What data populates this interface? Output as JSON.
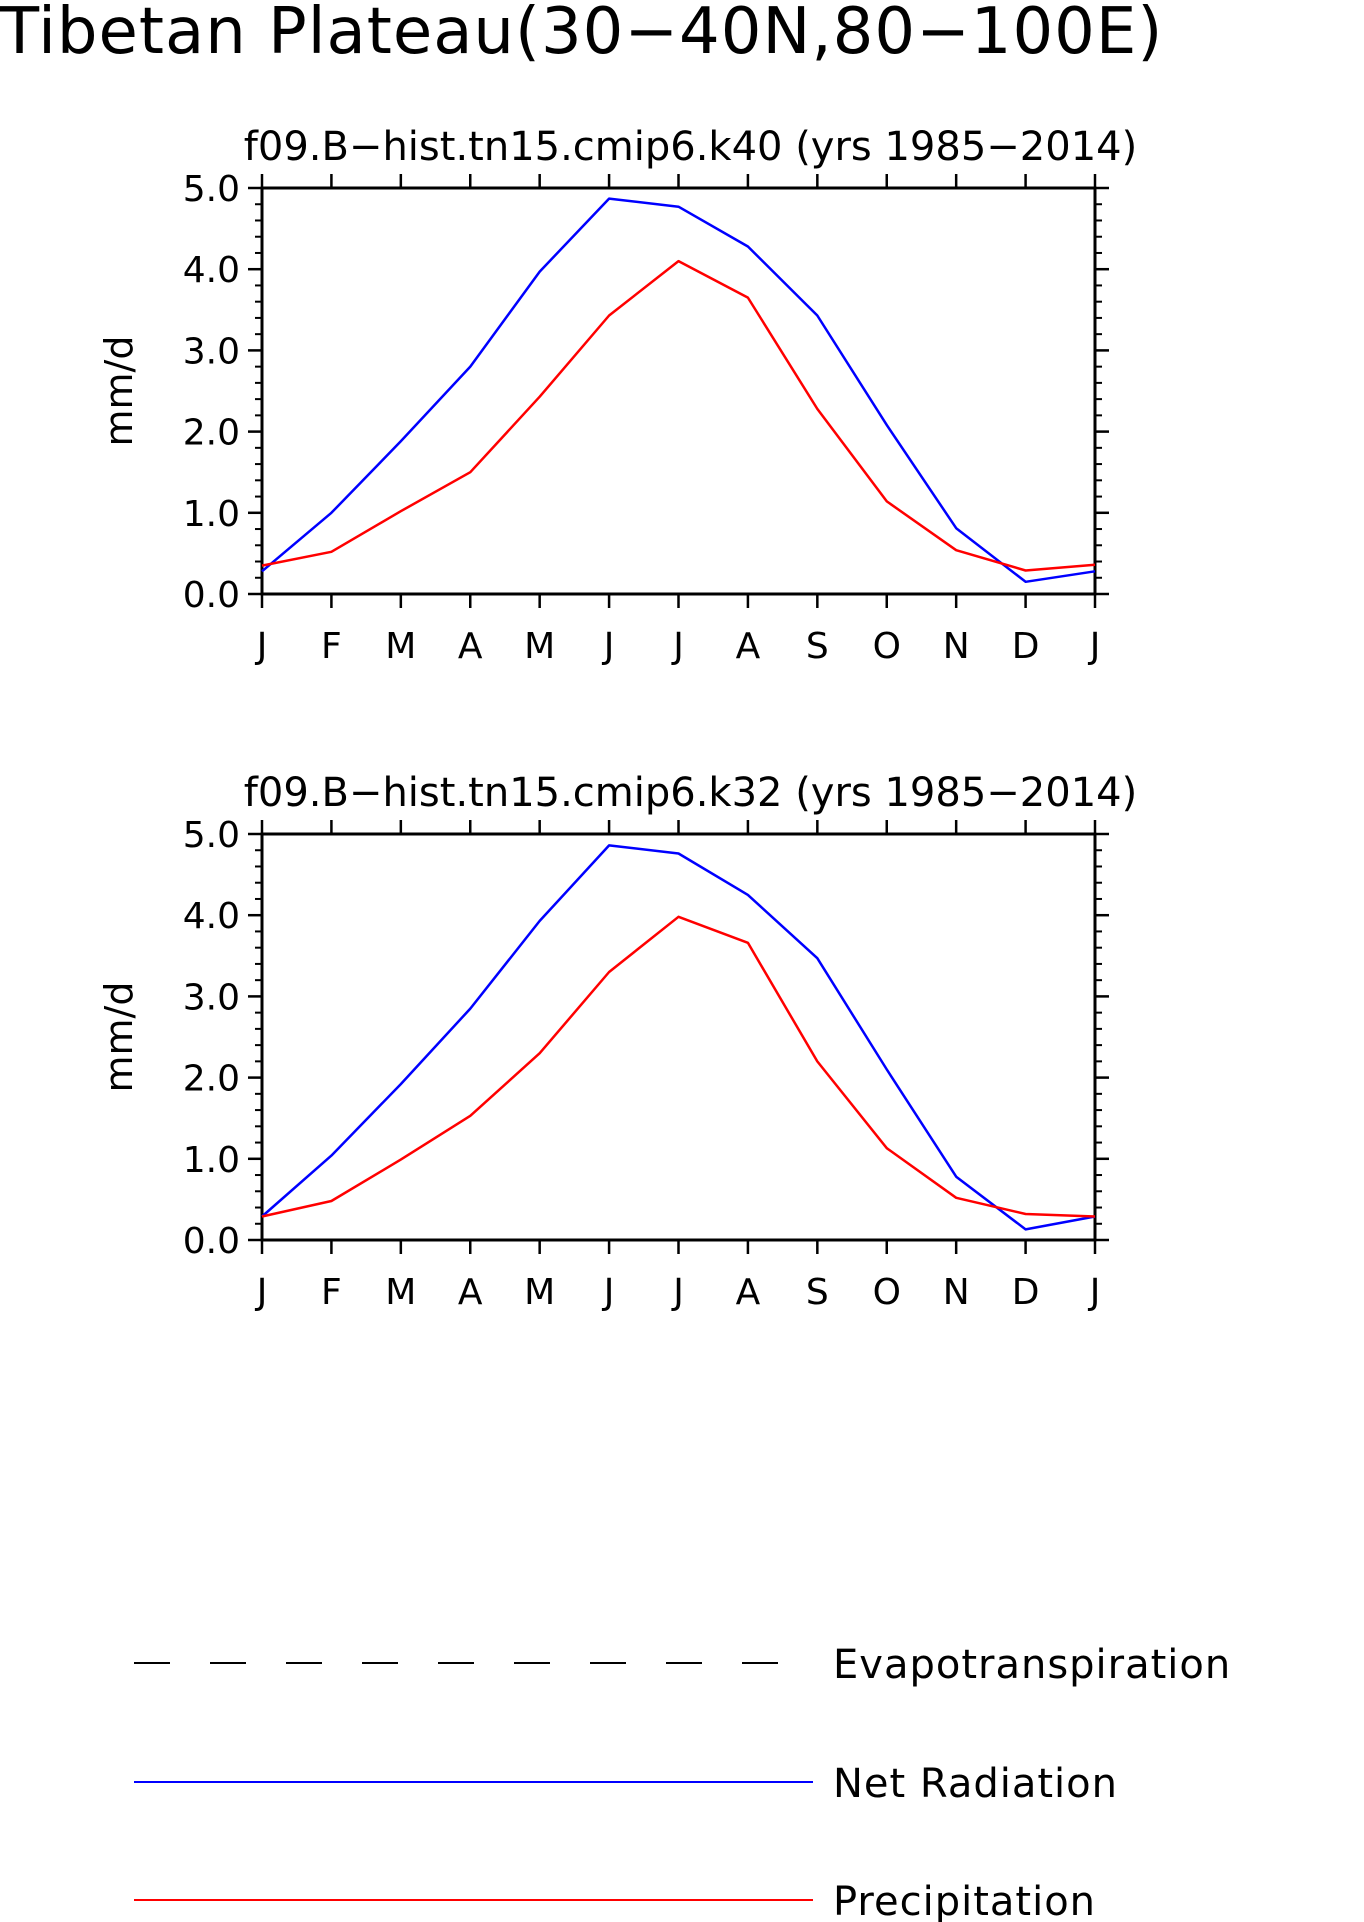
{
  "title": "Tibetan Plateau(30−40N,80−100E)",
  "legend": {
    "entries": [
      {
        "label": "Evapotranspiration",
        "color": "#000000",
        "dash": "dashed"
      },
      {
        "label": "Net Radiation",
        "color": "#0000ff",
        "dash": "solid"
      },
      {
        "label": "Precipitation",
        "color": "#ff0000",
        "dash": "solid"
      }
    ]
  },
  "chart_data": [
    {
      "type": "line",
      "title": "f09.B−hist.tn15.cmip6.k40 (yrs 1985−2014)",
      "ylabel": "mm/d",
      "xlabel": "",
      "categories": [
        "J",
        "F",
        "M",
        "A",
        "M",
        "J",
        "J",
        "A",
        "S",
        "O",
        "N",
        "D",
        "J"
      ],
      "ylim": [
        0,
        5
      ],
      "yticks": [
        "0.0",
        "1.0",
        "2.0",
        "3.0",
        "4.0",
        "5.0"
      ],
      "grid": false,
      "series": [
        {
          "name": "Net Radiation",
          "color": "#0000ff",
          "values": [
            0.28,
            1.0,
            1.88,
            2.8,
            3.97,
            4.87,
            4.77,
            4.28,
            3.43,
            2.08,
            0.81,
            0.15,
            0.28
          ]
        },
        {
          "name": "Precipitation",
          "color": "#ff0000",
          "values": [
            0.35,
            0.52,
            1.02,
            1.5,
            2.43,
            3.43,
            4.1,
            3.65,
            2.28,
            1.14,
            0.54,
            0.29,
            0.36
          ]
        }
      ]
    },
    {
      "type": "line",
      "title": "f09.B−hist.tn15.cmip6.k32 (yrs 1985−2014)",
      "ylabel": "mm/d",
      "xlabel": "",
      "categories": [
        "J",
        "F",
        "M",
        "A",
        "M",
        "J",
        "J",
        "A",
        "S",
        "O",
        "N",
        "D",
        "J"
      ],
      "ylim": [
        0,
        5
      ],
      "yticks": [
        "0.0",
        "1.0",
        "2.0",
        "3.0",
        "4.0",
        "5.0"
      ],
      "grid": false,
      "series": [
        {
          "name": "Net Radiation",
          "color": "#0000ff",
          "values": [
            0.29,
            1.04,
            1.92,
            2.85,
            3.93,
            4.86,
            4.76,
            4.25,
            3.47,
            2.1,
            0.78,
            0.13,
            0.29
          ]
        },
        {
          "name": "Precipitation",
          "color": "#ff0000",
          "values": [
            0.29,
            0.48,
            0.99,
            1.53,
            2.3,
            3.3,
            3.98,
            3.66,
            2.2,
            1.13,
            0.52,
            0.32,
            0.29
          ]
        }
      ]
    }
  ]
}
